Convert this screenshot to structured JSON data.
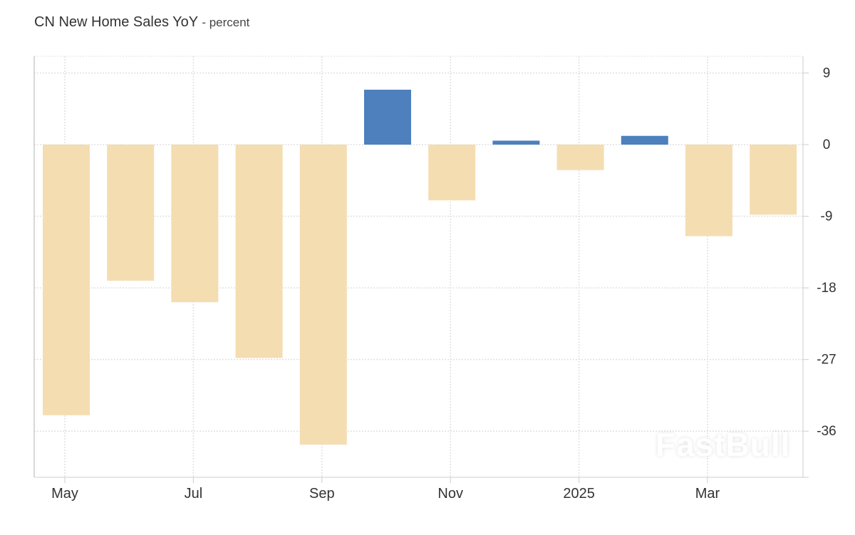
{
  "title": "CN New Home Sales YoY",
  "unit": "- percent",
  "watermark": "FastBull",
  "colors": {
    "positive": "#4d80bc",
    "negative": "#f4ddb1",
    "grid": "#e0e0e0",
    "axis": "#cccccc"
  },
  "chart_data": {
    "type": "bar",
    "title": "CN New Home Sales YoY",
    "ylabel": "percent",
    "categories": [
      "May 2024",
      "Jun 2024",
      "Jul 2024",
      "Aug 2024",
      "Sep 2024",
      "Oct 2024",
      "Nov 2024",
      "Dec 2024",
      "Jan 2025",
      "Feb 2025",
      "Mar 2025",
      "Apr 2025"
    ],
    "values": [
      -34.0,
      -17.1,
      -19.8,
      -26.8,
      -37.7,
      6.9,
      -7.0,
      0.5,
      -3.2,
      1.1,
      -11.5,
      -8.8
    ],
    "ylim": [
      -41.8,
      11.1
    ],
    "yticks": [
      9,
      0,
      -9,
      -18,
      -27,
      -36
    ],
    "xtick_labels": [
      {
        "index": 0,
        "label": "May"
      },
      {
        "index": 2,
        "label": "Jul"
      },
      {
        "index": 4,
        "label": "Sep"
      },
      {
        "index": 6,
        "label": "Nov"
      },
      {
        "index": 8,
        "label": "2025"
      },
      {
        "index": 10,
        "label": "Mar"
      }
    ],
    "grid": true,
    "legend": "none"
  }
}
